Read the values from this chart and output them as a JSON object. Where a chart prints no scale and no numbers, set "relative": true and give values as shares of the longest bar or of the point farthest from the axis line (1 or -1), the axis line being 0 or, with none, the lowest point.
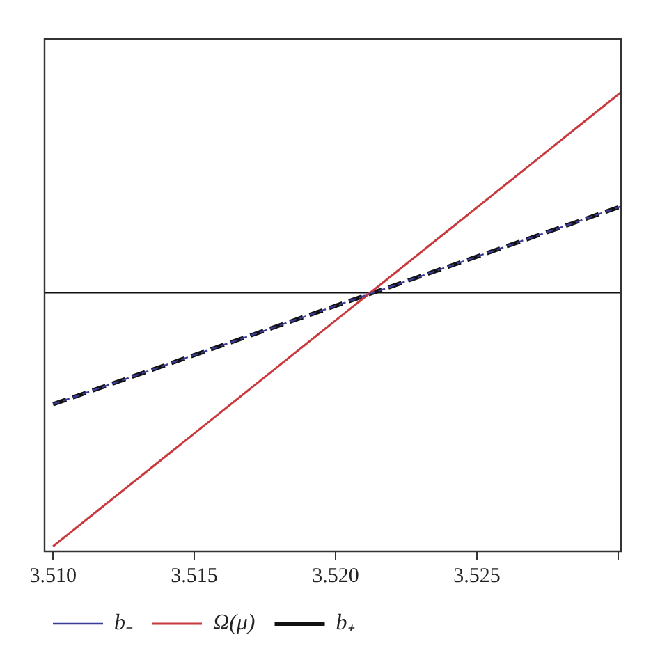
{
  "chart_data": {
    "type": "line",
    "relative": true,
    "x": [
      3.51,
      3.5301
    ],
    "xlim": [
      3.5097,
      3.5301
    ],
    "xticks": [
      {
        "value": 3.51,
        "label": "3.510"
      },
      3.515,
      {
        "value": 3.52,
        "label": "3.520"
      },
      3.525,
      {
        "value": 3.53,
        "label": null
      }
    ],
    "series": [
      {
        "name": "b₋",
        "color": "#3b3b9a",
        "values": [
          -0.44,
          0.34
        ],
        "line_style": "dashed"
      },
      {
        "name": "Ω(μ)",
        "color": "#c8383c",
        "values": [
          -1,
          0.79
        ],
        "line_style": "solid"
      },
      {
        "name": "b₊",
        "color": "#111111",
        "values": [
          -0.44,
          0.34
        ],
        "line_style": "dashed"
      }
    ],
    "ref_lines": [
      {
        "axis": "y",
        "value": 0,
        "color": "#111111"
      }
    ],
    "legend": "bottom left",
    "grid": false
  }
}
